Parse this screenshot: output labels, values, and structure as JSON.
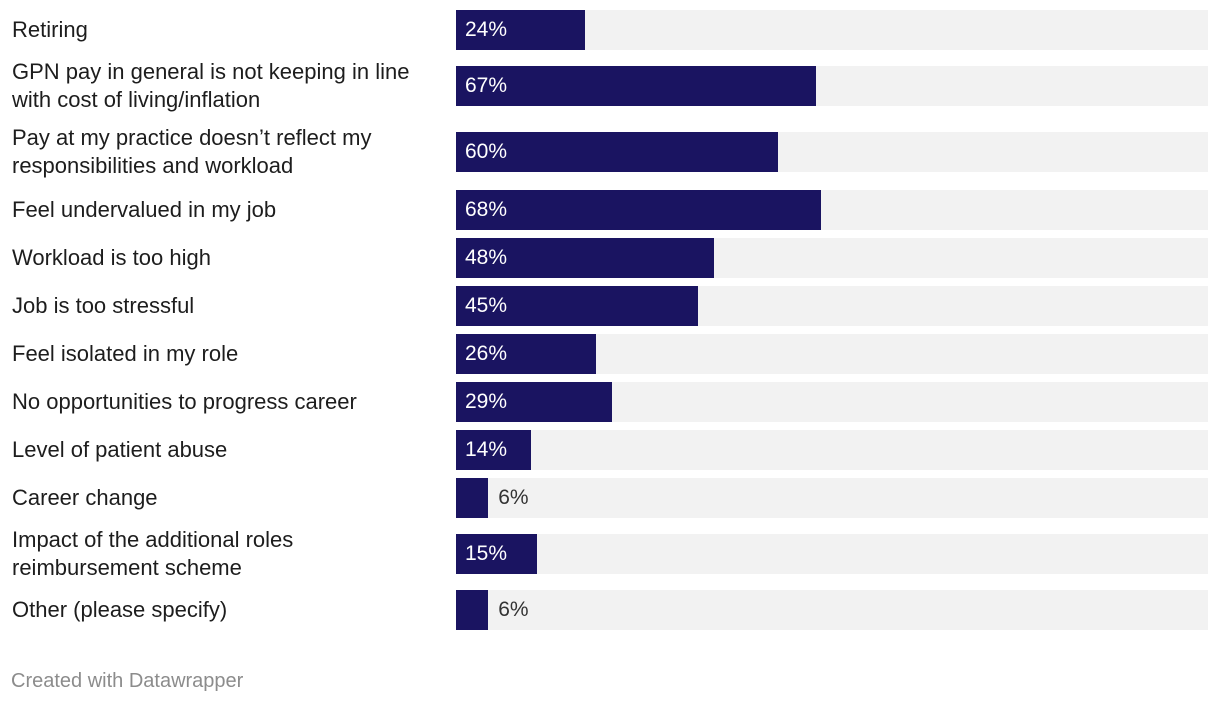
{
  "chart_data": {
    "type": "bar",
    "orientation": "horizontal",
    "categories": [
      "Retiring",
      "GPN pay in general is not keeping in line with cost of living/inflation",
      "Pay at my practice doesn’t reflect my responsibilities and workload",
      "Feel undervalued in my job",
      "Workload is too high",
      "Job is too stressful",
      "Feel isolated in my role",
      "No opportunities to progress career",
      "Level of patient abuse",
      "Career change",
      "Impact of the additional roles reimbursement scheme",
      "Other (please specify)"
    ],
    "values": [
      24,
      67,
      60,
      68,
      48,
      45,
      26,
      29,
      14,
      6,
      15,
      6
    ],
    "value_labels": [
      "24%",
      "67%",
      "60%",
      "68%",
      "48%",
      "45%",
      "26%",
      "29%",
      "14%",
      "6%",
      "15%",
      "6%"
    ],
    "xlim": [
      0,
      140
    ],
    "unit": "%",
    "colors": {
      "bar": "#1a1461",
      "track": "#f2f2f2"
    }
  },
  "footer": {
    "credit": "Created with Datawrapper"
  }
}
